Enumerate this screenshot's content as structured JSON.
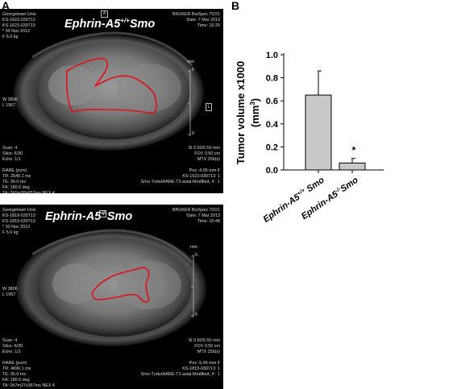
{
  "panel_a_letter": "A",
  "panel_b_letter": "B",
  "images": [
    {
      "title_main": "Ephrin-A5",
      "title_sup": "+/+",
      "title_tail": "Smo",
      "box_marker": "A",
      "side_marker": "L",
      "top_left": "Georgetown Univ\nKS-1623-030713\nKS-1623-030713\n* 30 Nov 2012\nF 5.0 kg",
      "top_right": "BRUKER BioSpec 70/21\nDate: 7 Mar 2013\nTime: 16:20",
      "mm_label": "mm",
      "mm_ticks": [
        "5",
        "0"
      ],
      "mid_left": "W 3806\nL 1967",
      "bottom_left": "Scan: 4\nSlice: 6/30\nEcho: 1/1\n\nRARE (pvm)\nTR: 2540.1 ms\nTE: 36.0 ms\nFA: 180.0 deg\nTA: 0h5m38s652ms NEX 4",
      "bottom_right": "SI 0.50/0.50 mm\nFOV 3.50 cm\nMTX 256(s)\n\nPos -4.95 mm F\nKS-1623-030713: 1\nSmo-TurboRARE-T2-axial-Modified, 4 : 1"
    },
    {
      "title_main": "Ephrin-A5",
      "title_sup": "-/-",
      "title_tail": "Smo",
      "box_marker": "A",
      "side_marker": "L",
      "top_left": "Georgetown Univ\nKS-1819-030713\nKS-1819-030713\n* 30 Nov 2012\nF 5.0 kg",
      "top_right": "BRUKER BioSpec 70/21\nDate: 7 Mar 2013\nTime: 10:48",
      "mm_label": "mm",
      "mm_ticks": [
        "5",
        "0"
      ],
      "mid_left": "W 3806\nL 1967",
      "bottom_left": "Scan: 4\nSlice: 6/30\nEcho: 1/1\n\nRARE (pvm)\nTR: 4690.1 ms\nTE: 36.0 ms\nFA: 180.0 deg\nTA: 0h7m27s367ms NEX 4",
      "bottom_right": "SI 0.50/0.50 mm\nFOV 3.50 cm\nMTX 256(s)\n\nPos -5.45 mm F\nKS-1819-030713: 1\nSmo-TurboRARE-T2-axial-Modified, 4 : 1"
    }
  ],
  "chart_data": {
    "type": "bar",
    "categories": [
      "Ephrin-A5+/+ Smo",
      "Ephrin-A5-/- Smo"
    ],
    "category_parts": [
      {
        "main": "Ephrin-A5",
        "sup": "+/+",
        "tail": " Smo"
      },
      {
        "main": "Ephrin-A5",
        "sup": "-/-",
        "tail": "Smo"
      }
    ],
    "values": [
      0.65,
      0.06
    ],
    "errors": [
      0.21,
      0.04
    ],
    "annotations": [
      "",
      "*"
    ],
    "ylabel_line1": "Tumor volume  x1000",
    "ylabel_line2_pre": "(mm",
    "ylabel_line2_sup": "3",
    "ylabel_line2_post": ")",
    "ylim": [
      0,
      1.0
    ],
    "yticks": [
      "0.0",
      "0.2",
      "0.4",
      "0.6",
      "0.8",
      "1.0"
    ],
    "ytick_values": [
      0,
      0.2,
      0.4,
      0.6,
      0.8,
      1.0
    ],
    "bar_color": "#c8c8c8",
    "grid": false
  }
}
